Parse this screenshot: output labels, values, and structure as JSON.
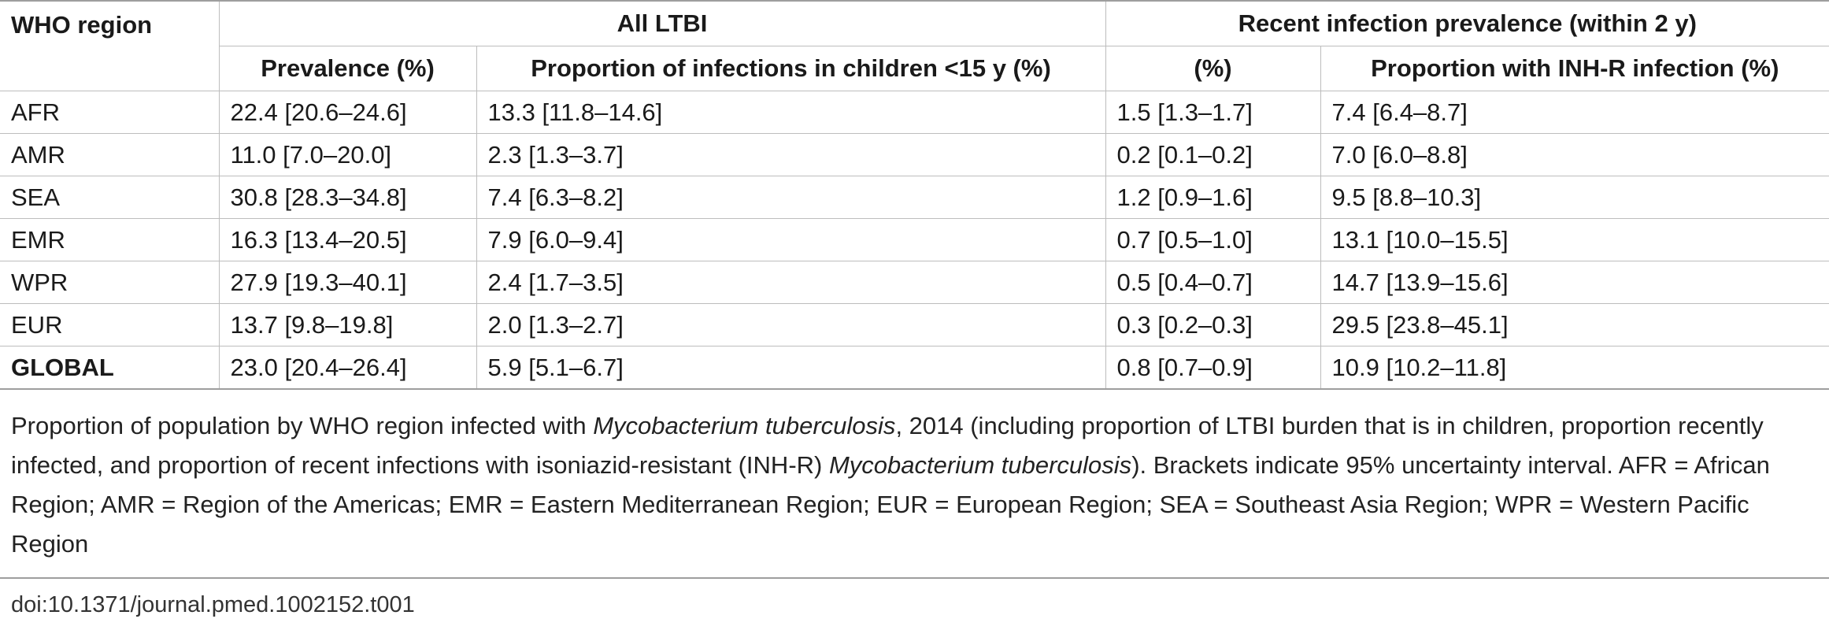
{
  "table": {
    "header_region": "WHO region",
    "group_all_ltbi": "All LTBI",
    "group_recent": "Recent infection prevalence (within 2 y)",
    "col_prevalence": "Prevalence (%)",
    "col_children": "Proportion of infections in children <15 y (%)",
    "col_recent_pct": "(%)",
    "col_inhr": "Proportion with INH-R infection (%)",
    "rows": [
      {
        "region": "AFR",
        "prevalence": "22.4 [20.6–24.6]",
        "children": "13.3 [11.8–14.6]",
        "recent": "1.5 [1.3–1.7]",
        "inhr": "7.4 [6.4–8.7]"
      },
      {
        "region": "AMR",
        "prevalence": "11.0 [7.0–20.0]",
        "children": "2.3 [1.3–3.7]",
        "recent": "0.2 [0.1–0.2]",
        "inhr": "7.0 [6.0–8.8]"
      },
      {
        "region": "SEA",
        "prevalence": "30.8 [28.3–34.8]",
        "children": "7.4 [6.3–8.2]",
        "recent": "1.2 [0.9–1.6]",
        "inhr": "9.5 [8.8–10.3]"
      },
      {
        "region": "EMR",
        "prevalence": "16.3 [13.4–20.5]",
        "children": "7.9 [6.0–9.4]",
        "recent": "0.7 [0.5–1.0]",
        "inhr": "13.1 [10.0–15.5]"
      },
      {
        "region": "WPR",
        "prevalence": "27.9 [19.3–40.1]",
        "children": "2.4 [1.7–3.5]",
        "recent": "0.5 [0.4–0.7]",
        "inhr": "14.7 [13.9–15.6]"
      },
      {
        "region": "EUR",
        "prevalence": "13.7 [9.8–19.8]",
        "children": "2.0 [1.3–2.7]",
        "recent": "0.3 [0.2–0.3]",
        "inhr": "29.5 [23.8–45.1]"
      },
      {
        "region": "GLOBAL",
        "prevalence": "23.0 [20.4–26.4]",
        "children": "5.9 [5.1–6.7]",
        "recent": "0.8 [0.7–0.9]",
        "inhr": "10.9 [10.2–11.8]"
      }
    ]
  },
  "caption": {
    "part1": "Proportion of population by WHO region infected with ",
    "italic1": "Mycobacterium tuberculosis",
    "part2": ", 2014 (including proportion of LTBI burden that is in children, proportion recently infected, and proportion of recent infections with isoniazid-resistant (INH-R) ",
    "italic2": "Mycobacterium tuberculosis",
    "part3": "). Brackets indicate 95% uncertainty interval. AFR = African Region; AMR = Region of the Americas; EMR = Eastern Mediterranean Region; EUR = European Region; SEA = Southeast Asia Region; WPR = Western Pacific Region"
  },
  "doi": "doi:10.1371/journal.pmed.1002152.t001"
}
